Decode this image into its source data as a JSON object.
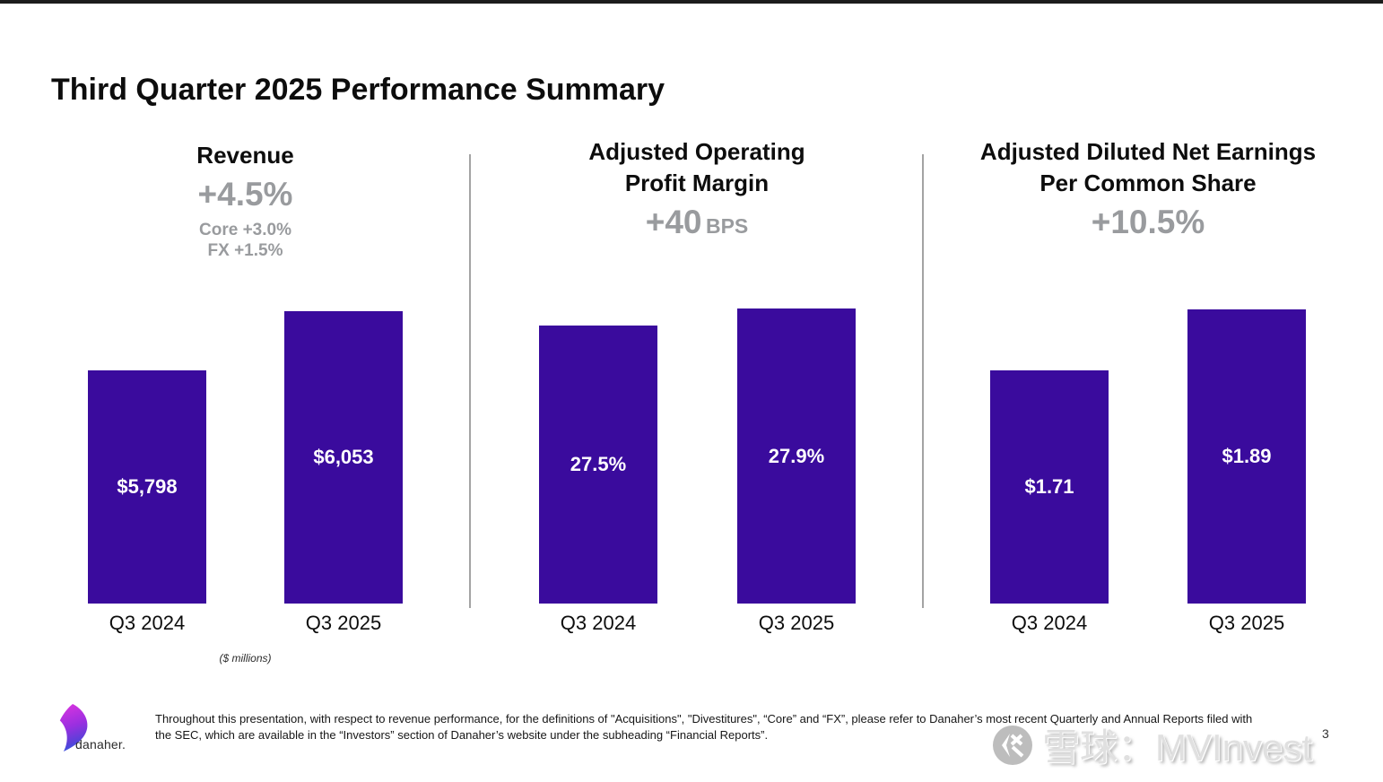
{
  "page": {
    "title": "Third Quarter 2025 Performance Summary",
    "page_number": "3"
  },
  "chart_data": [
    {
      "type": "bar",
      "title_lines": [
        "Revenue"
      ],
      "change_label": "+4.5%",
      "change_suffix": "",
      "sub_labels": [
        "Core +3.0%",
        "FX +1.5%"
      ],
      "categories": [
        "Q3 2024",
        "Q3 2025"
      ],
      "values": [
        5798,
        6053
      ],
      "value_labels": [
        "$5,798",
        "$6,053"
      ],
      "unit_note": "($ millions)",
      "ylim": [
        4800,
        6053
      ],
      "legend": "none",
      "grid": false
    },
    {
      "type": "bar",
      "title_lines": [
        "Adjusted Operating",
        "Profit Margin"
      ],
      "change_label": "+40",
      "change_suffix": "BPS",
      "sub_labels": [],
      "categories": [
        "Q3 2024",
        "Q3 2025"
      ],
      "values": [
        27.5,
        27.9
      ],
      "value_labels": [
        "27.5%",
        "27.9%"
      ],
      "unit_note": "",
      "ylim": [
        21,
        27.9
      ],
      "legend": "none",
      "grid": false
    },
    {
      "type": "bar",
      "title_lines": [
        "Adjusted Diluted Net Earnings",
        "Per Common Share"
      ],
      "change_label": "+10.5%",
      "change_suffix": "",
      "sub_labels": [],
      "categories": [
        "Q3 2024",
        "Q3 2025"
      ],
      "values": [
        1.71,
        1.89
      ],
      "value_labels": [
        "$1.71",
        "$1.89"
      ],
      "unit_note": "",
      "ylim": [
        1.02,
        1.89
      ],
      "legend": "none",
      "grid": false
    }
  ],
  "footer": {
    "logo_text": "danaher.",
    "disclaimer_line1": "Throughout this presentation, with respect to revenue performance, for the definitions of \"Acquisitions\", \"Divestitures\", “Core” and “FX”, please refer to Danaher’s most recent Quarterly and Annual Reports filed with",
    "disclaimer_line2": "the SEC, which are available in the “Investors” section of Danaher’s website under the subheading “Financial Reports”."
  },
  "watermark": {
    "text": "雪球：MVInvest"
  },
  "colors": {
    "bar": "#3a0b9d",
    "accent_gray": "#999b9e",
    "divider": "#a3a3a3"
  }
}
